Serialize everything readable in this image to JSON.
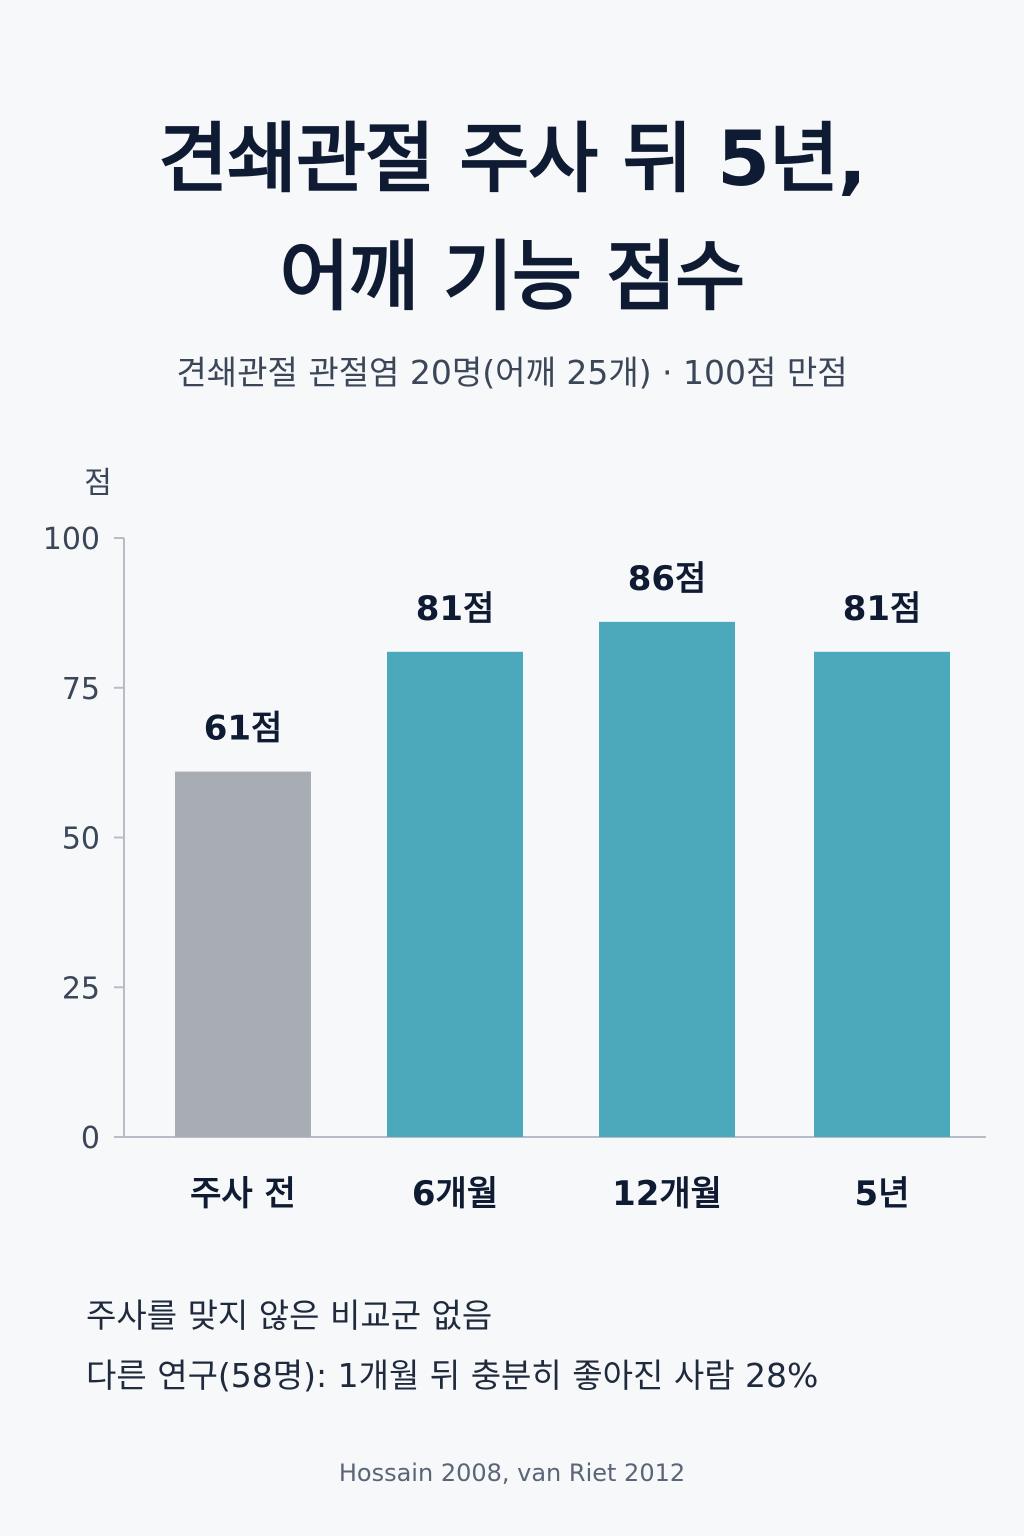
{
  "title_lines": [
    "견쇄관절 주사 뒤 5년,",
    "어깨 기능 점수"
  ],
  "subtitle": "견쇄관절 관절염 20명(어깨 25개) · 100점 만점",
  "notes": [
    "주사를 맞지 않은 비교군 없음",
    "다른 연구(58명): 1개월 뒤 충분히 좋아진 사람 28%"
  ],
  "source": "Hossain 2008, van Riet 2012",
  "colors": {
    "baseline_bar": "#a8adb4",
    "followup_bar": "#4ba9bb",
    "axis": "#b7bcc6",
    "title_text": "#0f1b33"
  },
  "chart_data": {
    "type": "bar",
    "ylabel": "점",
    "xlabel": "",
    "ylim": [
      0,
      100
    ],
    "yticks": [
      0,
      25,
      50,
      75,
      100
    ],
    "categories": [
      "주사 전",
      "6개월",
      "12개월",
      "5년"
    ],
    "values": [
      61,
      81,
      86,
      81
    ],
    "data_labels": [
      "61점",
      "81점",
      "86점",
      "81점"
    ],
    "bar_colors": [
      "#a8adb4",
      "#4ba9bb",
      "#4ba9bb",
      "#4ba9bb"
    ],
    "grid": false,
    "legend": "none"
  }
}
